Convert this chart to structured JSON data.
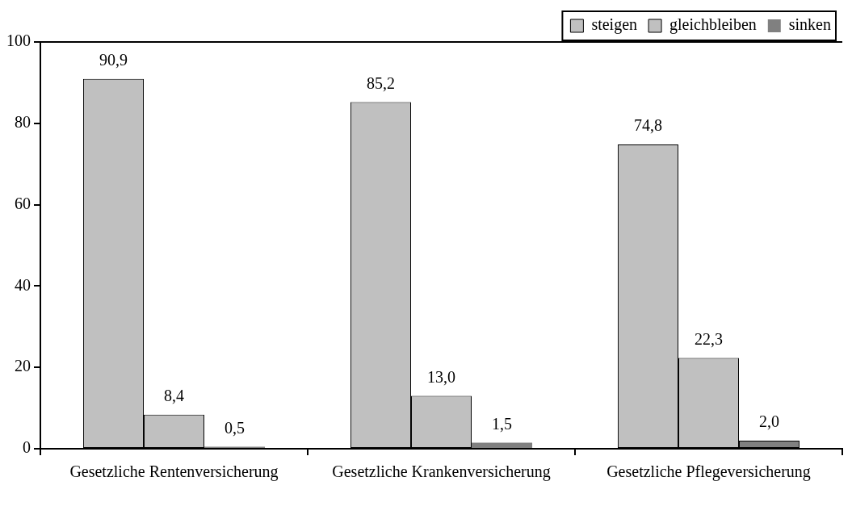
{
  "chart_data": {
    "type": "bar",
    "categories": [
      "Gesetzliche Rentenversicherung",
      "Gesetzliche Krankenversicherung",
      "Gesetzliche Pflegeversicherung"
    ],
    "series": [
      {
        "name": "steigen",
        "color": "#c0c0c0",
        "values": [
          90.9,
          85.2,
          74.8
        ],
        "value_labels": [
          "90,9",
          "85,2",
          "74,8"
        ]
      },
      {
        "name": "gleichbleiben",
        "color": "#c0c0c0",
        "values": [
          8.4,
          13.0,
          22.3
        ],
        "value_labels": [
          "8,4",
          "13,0",
          "22,3"
        ]
      },
      {
        "name": "sinken",
        "color": "#808080",
        "values": [
          0.5,
          1.5,
          2.0
        ],
        "value_labels": [
          "0,5",
          "1,5",
          "2,0"
        ]
      }
    ],
    "ylim": [
      0,
      100
    ],
    "yticks": [
      0,
      20,
      40,
      60,
      80,
      100
    ],
    "legend": "top right"
  }
}
